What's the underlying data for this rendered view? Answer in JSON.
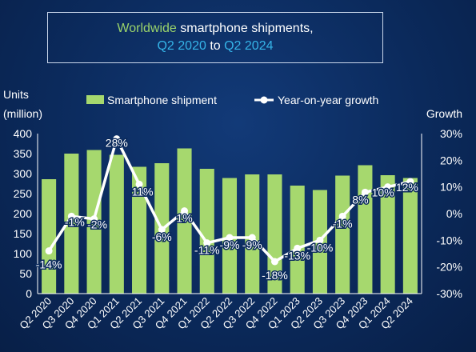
{
  "title": {
    "line1_part1": "Worldwide",
    "line1_part2": " smartphone shipments,",
    "line2_part1": "Q2 2020",
    "line2_part2": " to ",
    "line2_part3": "Q2 2024"
  },
  "colors": {
    "bar": "#a6d86e",
    "line": "#ffffff",
    "text": "#ffffff",
    "title_green": "#9ad36a",
    "title_blue": "#35b4e8"
  },
  "chart_data": {
    "type": "bar",
    "categories": [
      "Q2 2020",
      "Q3 2020",
      "Q4 2020",
      "Q1 2021",
      "Q2 2021",
      "Q3 2021",
      "Q4 2021",
      "Q1 2022",
      "Q2 2022",
      "Q3 2022",
      "Q4 2022",
      "Q1 2023",
      "Q2 2023",
      "Q3 2023",
      "Q4 2023",
      "Q1 2024",
      "Q2 2024"
    ],
    "series": [
      {
        "name": "Smartphone shipment",
        "type": "bar",
        "axis": "left",
        "values": [
          286,
          350,
          359,
          347,
          317,
          326,
          363,
          312,
          289,
          298,
          298,
          270,
          259,
          295,
          321,
          296,
          289
        ]
      },
      {
        "name": "Year-on-year growth",
        "type": "line",
        "axis": "right",
        "values": [
          -14,
          -1,
          -2,
          28,
          11,
          -6,
          1,
          -11,
          -9,
          -9,
          -18,
          -13,
          -10,
          -1,
          8,
          10,
          12
        ],
        "labels": [
          "-14%",
          "-1%",
          "-2%",
          "28%",
          "11%",
          "-6%",
          "1%",
          "-11%",
          "-9%",
          "-9%",
          "-18%",
          "-13%",
          "-10%",
          "-1%",
          "8%",
          "10%",
          "12%"
        ]
      }
    ],
    "y_left": {
      "label_line1": "Units",
      "label_line2": "(million)",
      "range": [
        0,
        400
      ],
      "ticks": [
        "0",
        "50",
        "100",
        "150",
        "200",
        "250",
        "300",
        "350",
        "400"
      ]
    },
    "y_right": {
      "label": "Growth",
      "range": [
        -30,
        30
      ],
      "ticks": [
        "-30%",
        "-20%",
        "-10%",
        "0%",
        "10%",
        "20%",
        "30%"
      ]
    },
    "legend_position": "top",
    "grid": false
  }
}
